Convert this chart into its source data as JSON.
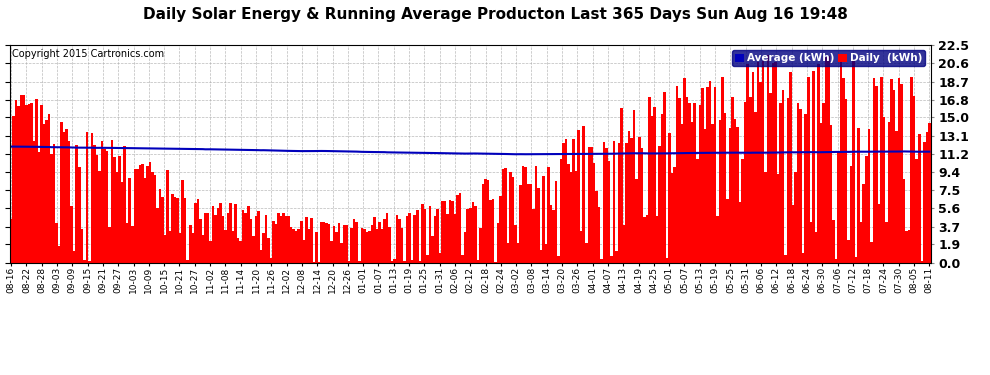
{
  "title": "Daily Solar Energy & Running Average Producton Last 365 Days Sun Aug 16 19:48",
  "copyright": "Copyright 2015 Cartronics.com",
  "ylabel_right_ticks": [
    0.0,
    1.9,
    3.7,
    5.6,
    7.5,
    9.4,
    11.2,
    13.1,
    15.0,
    16.8,
    18.7,
    20.6,
    22.5
  ],
  "ylim": [
    0.0,
    22.5
  ],
  "bar_color": "#FF0000",
  "line_color": "#0000BB",
  "background_color": "#FFFFFF",
  "grid_color": "#AAAAAA",
  "legend_avg_color": "#0000BB",
  "legend_daily_color": "#FF0000",
  "legend_bg": "#000080",
  "title_fontsize": 11,
  "figsize": [
    9.9,
    3.75
  ],
  "dpi": 100,
  "x_tick_labels": [
    "08-16",
    "08-22",
    "08-28",
    "09-03",
    "09-09",
    "09-15",
    "09-21",
    "09-27",
    "10-03",
    "10-09",
    "10-15",
    "10-21",
    "10-27",
    "11-02",
    "11-08",
    "11-14",
    "11-20",
    "11-26",
    "12-02",
    "12-08",
    "12-14",
    "12-20",
    "12-26",
    "01-01",
    "01-07",
    "01-13",
    "01-19",
    "01-25",
    "01-31",
    "02-06",
    "02-12",
    "02-18",
    "02-24",
    "03-02",
    "03-08",
    "03-14",
    "03-20",
    "03-26",
    "04-01",
    "04-07",
    "04-13",
    "04-19",
    "04-25",
    "05-01",
    "05-07",
    "05-13",
    "05-19",
    "05-25",
    "05-31",
    "06-06",
    "06-12",
    "06-18",
    "06-24",
    "06-30",
    "07-06",
    "07-12",
    "07-18",
    "07-24",
    "07-30",
    "08-05",
    "08-11"
  ],
  "n_bars": 365
}
